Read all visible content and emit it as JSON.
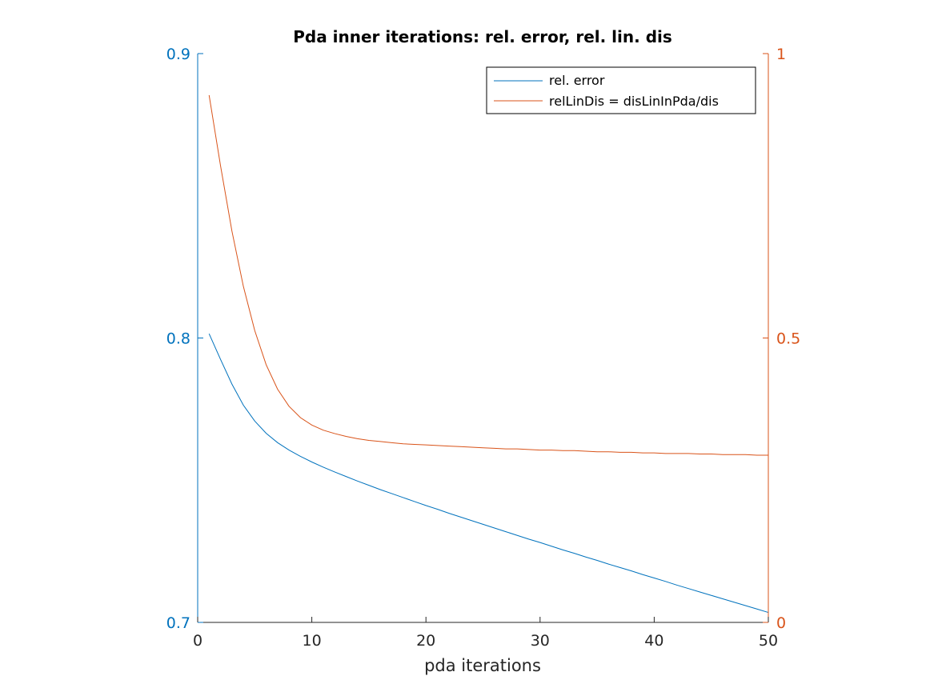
{
  "chart_data": {
    "type": "line",
    "title": "Pda inner iterations: rel. error, rel. lin. dis",
    "xlabel": "pda iterations",
    "ylabel_left": "",
    "ylabel_right": "",
    "xlim": [
      0,
      50
    ],
    "ylim_left": [
      0.7,
      0.9
    ],
    "ylim_right": [
      0,
      1
    ],
    "x_ticks": [
      "0",
      "10",
      "20",
      "30",
      "40",
      "50"
    ],
    "y_left_ticks": [
      "0.7",
      "0.8",
      "0.9"
    ],
    "y_right_ticks": [
      "0",
      "0.5",
      "1"
    ],
    "grid": false,
    "legend_position": "top-right",
    "colors": {
      "left_axis": "#0072BD",
      "right_axis": "#D95319",
      "x_axis": "#262626"
    },
    "series": [
      {
        "name": "rel. error",
        "axis": "left",
        "color": "#0072BD",
        "x": [
          1,
          2,
          3,
          4,
          5,
          6,
          7,
          8,
          9,
          10,
          11,
          12,
          13,
          14,
          15,
          16,
          17,
          18,
          19,
          20,
          21,
          22,
          23,
          24,
          25,
          26,
          27,
          28,
          29,
          30,
          31,
          32,
          33,
          34,
          35,
          36,
          37,
          38,
          39,
          40,
          41,
          42,
          43,
          44,
          45,
          46,
          47,
          48,
          49,
          50
        ],
        "values": [
          0.8015,
          0.7925,
          0.7838,
          0.7764,
          0.7708,
          0.7665,
          0.7632,
          0.7606,
          0.7584,
          0.7564,
          0.7546,
          0.7529,
          0.7513,
          0.7497,
          0.7482,
          0.7467,
          0.7453,
          0.7439,
          0.7425,
          0.7411,
          0.7398,
          0.7384,
          0.7371,
          0.7358,
          0.7345,
          0.7332,
          0.7319,
          0.7306,
          0.7293,
          0.7281,
          0.7268,
          0.7255,
          0.7243,
          0.723,
          0.7218,
          0.7205,
          0.7193,
          0.7181,
          0.7168,
          0.7156,
          0.7144,
          0.7131,
          0.7119,
          0.7107,
          0.7095,
          0.7083,
          0.7071,
          0.7059,
          0.7047,
          0.7035
        ]
      },
      {
        "name": "relLinDis = disLinInPda/dis",
        "axis": "right",
        "color": "#D95319",
        "x": [
          1,
          2,
          3,
          4,
          5,
          6,
          7,
          8,
          9,
          10,
          11,
          12,
          13,
          14,
          15,
          16,
          17,
          18,
          19,
          20,
          21,
          22,
          23,
          24,
          25,
          26,
          27,
          28,
          29,
          30,
          31,
          32,
          33,
          34,
          35,
          36,
          37,
          38,
          39,
          40,
          41,
          42,
          43,
          44,
          45,
          46,
          47,
          48,
          49,
          50
        ],
        "values": [
          0.927,
          0.803,
          0.688,
          0.591,
          0.513,
          0.453,
          0.41,
          0.38,
          0.36,
          0.347,
          0.338,
          0.332,
          0.327,
          0.323,
          0.32,
          0.318,
          0.316,
          0.314,
          0.313,
          0.312,
          0.311,
          0.31,
          0.309,
          0.308,
          0.307,
          0.306,
          0.305,
          0.305,
          0.304,
          0.303,
          0.303,
          0.302,
          0.302,
          0.301,
          0.3,
          0.3,
          0.299,
          0.299,
          0.298,
          0.298,
          0.297,
          0.297,
          0.297,
          0.296,
          0.296,
          0.295,
          0.295,
          0.295,
          0.294,
          0.294
        ]
      }
    ]
  }
}
